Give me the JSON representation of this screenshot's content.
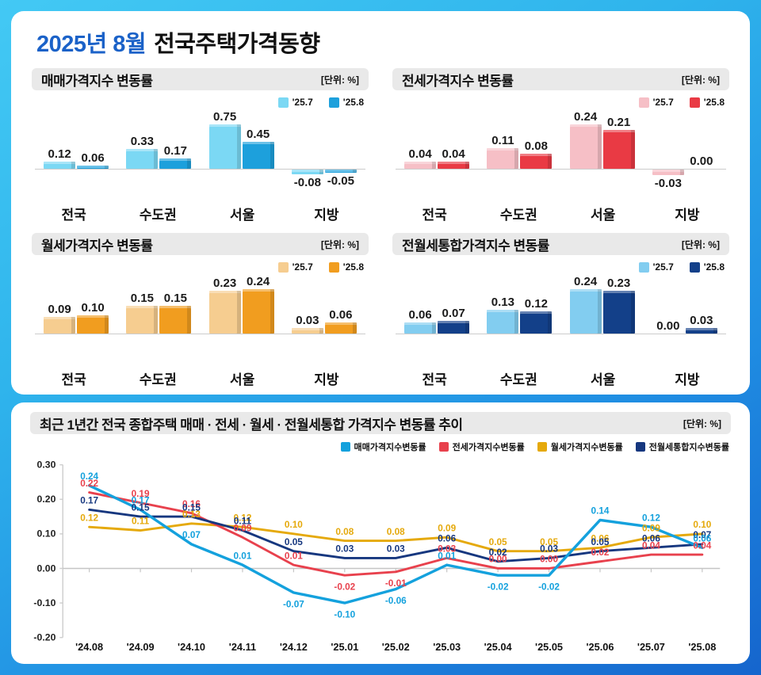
{
  "page_title": {
    "highlight": "2025년 8월",
    "rest": "전국주택가격동향"
  },
  "unit_label": "[단위: %]",
  "chart_data": [
    {
      "type": "bar",
      "title": "매매가격지수 변동률",
      "unit": "[단위: %]",
      "categories": [
        "전국",
        "수도권",
        "서울",
        "지방"
      ],
      "series": [
        {
          "name": "'25.7",
          "color": "#7bd8f4",
          "values": [
            0.12,
            0.33,
            0.75,
            -0.08
          ]
        },
        {
          "name": "'25.8",
          "color": "#1da0dc",
          "values": [
            0.06,
            0.17,
            0.45,
            -0.05
          ]
        }
      ]
    },
    {
      "type": "bar",
      "title": "전세가격지수 변동률",
      "unit": "[단위: %]",
      "categories": [
        "전국",
        "수도권",
        "서울",
        "지방"
      ],
      "series": [
        {
          "name": "'25.7",
          "color": "#f6bfc6",
          "values": [
            0.04,
            0.11,
            0.24,
            -0.03
          ]
        },
        {
          "name": "'25.8",
          "color": "#e93a44",
          "values": [
            0.04,
            0.08,
            0.21,
            0.0
          ]
        }
      ]
    },
    {
      "type": "bar",
      "title": "월세가격지수 변동률",
      "unit": "[단위: %]",
      "categories": [
        "전국",
        "수도권",
        "서울",
        "지방"
      ],
      "series": [
        {
          "name": "'25.7",
          "color": "#f6cd90",
          "values": [
            0.09,
            0.15,
            0.23,
            0.03
          ]
        },
        {
          "name": "'25.8",
          "color": "#f19d1f",
          "values": [
            0.1,
            0.15,
            0.24,
            0.06
          ]
        }
      ]
    },
    {
      "type": "bar",
      "title": "전월세통합가격지수 변동률",
      "unit": "[단위: %]",
      "categories": [
        "전국",
        "수도권",
        "서울",
        "지방"
      ],
      "series": [
        {
          "name": "'25.7",
          "color": "#82cdf0",
          "values": [
            0.06,
            0.13,
            0.24,
            0.0
          ]
        },
        {
          "name": "'25.8",
          "color": "#134089",
          "values": [
            0.07,
            0.12,
            0.23,
            0.03
          ]
        }
      ]
    },
    {
      "type": "line",
      "title": "최근 1년간 전국 종합주택 매매 · 전세 · 월세 · 전월세통합 가격지수 변동률 추이",
      "unit": "[단위: %]",
      "x": [
        "'24.08",
        "'24.09",
        "'24.10",
        "'24.11",
        "'24.12",
        "'25.01",
        "'25.02",
        "'25.03",
        "'25.04",
        "'25.05",
        "'25.06",
        "'25.07",
        "'25.08"
      ],
      "ylim": [
        -0.2,
        0.3
      ],
      "yticks": [
        0.3,
        0.2,
        0.1,
        0.0,
        -0.1,
        -0.2
      ],
      "legend_position": "top-right",
      "series": [
        {
          "name": "매매가격지수변동률",
          "color": "#14a1dd",
          "values": [
            0.24,
            0.17,
            0.07,
            0.01,
            -0.07,
            -0.1,
            -0.06,
            0.01,
            -0.02,
            -0.02,
            0.14,
            0.12,
            0.06
          ]
        },
        {
          "name": "전세가격지수변동률",
          "color": "#e8414d",
          "values": [
            0.22,
            0.19,
            0.16,
            0.09,
            0.01,
            -0.02,
            -0.01,
            0.03,
            0.0,
            0.0,
            0.02,
            0.04,
            0.04
          ]
        },
        {
          "name": "월세가격지수변동률",
          "color": "#e5a90b",
          "values": [
            0.12,
            0.11,
            0.13,
            0.12,
            0.1,
            0.08,
            0.08,
            0.09,
            0.05,
            0.05,
            0.06,
            0.09,
            0.1
          ]
        },
        {
          "name": "전월세통합지수변동률",
          "color": "#16377f",
          "values": [
            0.17,
            0.15,
            0.15,
            0.11,
            0.05,
            0.03,
            0.03,
            0.06,
            0.02,
            0.03,
            0.05,
            0.06,
            0.07
          ]
        }
      ]
    }
  ]
}
